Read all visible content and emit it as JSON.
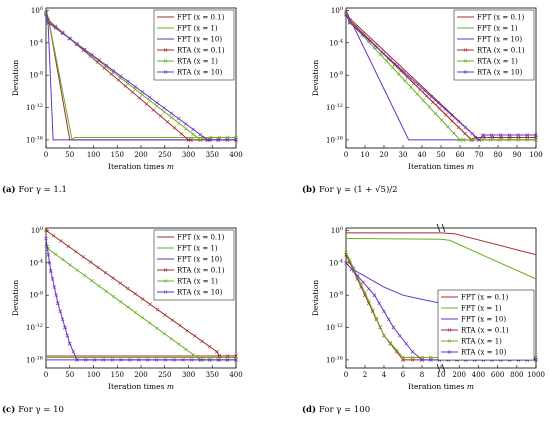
{
  "figure": {
    "colors": {
      "FPT_red": "#a52a2a",
      "FPT_green": "#6aaf1f",
      "FPT_purple": "#6a2fc6",
      "RTA_red": "#a52a2a",
      "RTA_green": "#6aaf1f",
      "RTA_purple": "#6a2fc6",
      "frame": "#000000"
    }
  },
  "chart_data": [
    {
      "type": "line",
      "panel_label": "(a)",
      "caption": "For γ = 1.1",
      "xlabel": "Iteration times m",
      "ylabel": "Deviation",
      "yscale": "log",
      "xlim": [
        0,
        400
      ],
      "ylim": [
        1e-17,
        2
      ],
      "xticks": [
        "0",
        "50",
        "100",
        "150",
        "200",
        "250",
        "300",
        "350",
        "400"
      ],
      "yticks": [
        "10^0",
        "10^-4",
        "10^-8",
        "10^-12",
        "10^-16"
      ],
      "legend_position": "top-right",
      "series": [
        {
          "name": "FPT (x = 0.1)",
          "color": "#a52a2a",
          "marker": "none",
          "x": [
            0,
            5,
            50,
            55,
            400
          ],
          "y": [
            0.8,
            0.1,
            1e-16,
            1e-16,
            1e-16
          ]
        },
        {
          "name": "FPT (x = 1)",
          "color": "#6aaf1f",
          "marker": "none",
          "x": [
            0,
            5,
            55,
            60,
            400
          ],
          "y": [
            0.8,
            0.1,
            1e-16,
            2e-16,
            2e-16
          ]
        },
        {
          "name": "FPT (x = 10)",
          "color": "#6a2fc6",
          "marker": "none",
          "x": [
            0,
            4,
            15,
            400
          ],
          "y": [
            0.9,
            0.1,
            1e-16,
            1e-16
          ]
        },
        {
          "name": "RTA (x = 0.1)",
          "color": "#a52a2a",
          "marker": "x",
          "x": [
            0,
            5,
            300,
            305,
            400
          ],
          "y": [
            0.5,
            0.06,
            1e-16,
            1e-16,
            1e-16
          ]
        },
        {
          "name": "RTA (x = 1)",
          "color": "#6aaf1f",
          "marker": "x",
          "x": [
            0,
            5,
            325,
            330,
            400
          ],
          "y": [
            0.4,
            0.04,
            1e-16,
            2e-16,
            2e-16
          ]
        },
        {
          "name": "RTA (x = 10)",
          "color": "#6a2fc6",
          "marker": "x",
          "x": [
            0,
            5,
            340,
            345,
            400
          ],
          "y": [
            0.3,
            0.03,
            1e-16,
            1e-16,
            1e-16
          ]
        }
      ]
    },
    {
      "type": "line",
      "panel_label": "(b)",
      "caption": "For γ = (1 + √5)/2",
      "xlabel": "Iteration times m",
      "ylabel": "Deviation",
      "yscale": "log",
      "xlim": [
        0,
        100
      ],
      "ylim": [
        1e-17,
        2
      ],
      "xticks": [
        "0",
        "10",
        "20",
        "30",
        "40",
        "50",
        "60",
        "70",
        "80",
        "90",
        "100"
      ],
      "yticks": [
        "10^0",
        "10^-4",
        "10^-8",
        "10^-12",
        "10^-16"
      ],
      "legend_position": "top-right",
      "series": [
        {
          "name": "FPT (x = 0.1)",
          "color": "#a52a2a",
          "marker": "none",
          "x": [
            0,
            2,
            70,
            72,
            100
          ],
          "y": [
            0.8,
            0.1,
            1e-16,
            1e-16,
            1e-16
          ]
        },
        {
          "name": "FPT (x = 1)",
          "color": "#6aaf1f",
          "marker": "none",
          "x": [
            0,
            2,
            66,
            68,
            100
          ],
          "y": [
            0.5,
            0.05,
            1e-16,
            2e-16,
            2e-16
          ]
        },
        {
          "name": "FPT (x = 10)",
          "color": "#6a2fc6",
          "marker": "none",
          "x": [
            0,
            2,
            33,
            35,
            100
          ],
          "y": [
            0.9,
            0.1,
            1e-16,
            1e-16,
            1e-16
          ]
        },
        {
          "name": "RTA (x = 0.1)",
          "color": "#a52a2a",
          "marker": "x",
          "x": [
            0,
            2,
            66,
            68,
            100
          ],
          "y": [
            0.6,
            0.06,
            1e-16,
            2e-16,
            2e-16
          ]
        },
        {
          "name": "RTA (x = 1)",
          "color": "#6aaf1f",
          "marker": "x",
          "x": [
            0,
            2,
            60,
            62,
            100
          ],
          "y": [
            0.4,
            0.04,
            1e-16,
            1e-16,
            1e-16
          ]
        },
        {
          "name": "RTA (x = 10)",
          "color": "#6a2fc6",
          "marker": "x",
          "x": [
            0,
            2,
            70,
            72,
            100
          ],
          "y": [
            0.3,
            0.03,
            1e-16,
            4e-16,
            4e-16
          ]
        }
      ]
    },
    {
      "type": "line",
      "panel_label": "(c)",
      "caption": "For γ = 10",
      "xlabel": "Iteration times m",
      "ylabel": "Deviation",
      "yscale": "log",
      "xlim": [
        0,
        400
      ],
      "ylim": [
        1e-17,
        2
      ],
      "xticks": [
        "0",
        "50",
        "100",
        "150",
        "200",
        "250",
        "300",
        "350",
        "400"
      ],
      "yticks": [
        "10^0",
        "10^-4",
        "10^-8",
        "10^-12",
        "10^-16"
      ],
      "legend_position": "top-right",
      "series": [
        {
          "name": "FPT (x = 0.1)",
          "color": "#a52a2a",
          "marker": "none",
          "x": [
            0,
            400
          ],
          "y": [
            3e-16,
            3e-16
          ]
        },
        {
          "name": "FPT (x = 1)",
          "color": "#6aaf1f",
          "marker": "none",
          "x": [
            0,
            400
          ],
          "y": [
            2e-16,
            2e-16
          ]
        },
        {
          "name": "FPT (x = 10)",
          "color": "#6a2fc6",
          "marker": "none",
          "x": [
            0,
            400
          ],
          "y": [
            1e-16,
            1e-16
          ]
        },
        {
          "name": "RTA (x = 0.1)",
          "color": "#a52a2a",
          "marker": "x",
          "x": [
            0,
            360,
            365,
            400
          ],
          "y": [
            1,
            1e-15,
            3e-16,
            3e-16
          ]
        },
        {
          "name": "RTA (x = 1)",
          "color": "#6aaf1f",
          "marker": "x",
          "x": [
            0,
            5,
            325,
            330,
            400
          ],
          "y": [
            0.01,
            0.005,
            1e-16,
            1e-16,
            1e-16
          ]
        },
        {
          "name": "RTA (x = 10)",
          "color": "#6a2fc6",
          "marker": "x",
          "x": [
            0,
            10,
            25,
            40,
            50,
            65,
            400
          ],
          "y": [
            0.1,
            1e-05,
            1e-09,
            1e-12,
            1e-14,
            1e-16,
            1e-16
          ]
        }
      ]
    },
    {
      "type": "line",
      "panel_label": "(d)",
      "caption": "For γ = 100",
      "xlabel": "Iteration times m",
      "ylabel": "Deviation",
      "yscale": "log",
      "xaxis": "broken",
      "xlim": [
        0,
        1000
      ],
      "ylim": [
        1e-17,
        2
      ],
      "xticks": [
        "0",
        "2",
        "4",
        "6",
        "8",
        "10",
        "200",
        "400",
        "600",
        "800",
        "1000"
      ],
      "yticks": [
        "10^0",
        "10^-4",
        "10^-8",
        "10^-12",
        "10^-16"
      ],
      "legend_position": "bottom-right",
      "series": [
        {
          "name": "FPT (x = 0.1)",
          "color": "#a52a2a",
          "marker": "none",
          "x": [
            0,
            10,
            150,
            1000
          ],
          "y": [
            0.5,
            0.5,
            0.4,
            0.001
          ]
        },
        {
          "name": "FPT (x = 1)",
          "color": "#6aaf1f",
          "marker": "none",
          "x": [
            0,
            10,
            100,
            1000
          ],
          "y": [
            0.1,
            0.08,
            0.06,
            1e-06
          ]
        },
        {
          "name": "FPT (x = 10)",
          "color": "#6a2fc6",
          "marker": "none",
          "x": [
            0,
            1,
            4,
            6,
            8,
            10,
            1000
          ],
          "y": [
            0.001,
            1e-05,
            1e-07,
            1e-08,
            3e-09,
            1e-09,
            1e-16
          ]
        },
        {
          "name": "RTA (x = 0.1)",
          "color": "#a52a2a",
          "marker": "x",
          "x": [
            0,
            2,
            4,
            6,
            8,
            1000
          ],
          "y": [
            0.001,
            1e-08,
            1e-13,
            1e-16,
            1e-16,
            1e-16
          ]
        },
        {
          "name": "RTA (x = 1)",
          "color": "#6aaf1f",
          "marker": "x",
          "x": [
            0,
            2,
            4,
            6,
            8,
            1000
          ],
          "y": [
            0.002,
            2e-08,
            1e-13,
            2e-16,
            2e-16,
            2e-16
          ]
        },
        {
          "name": "RTA (x = 10)",
          "color": "#6a2fc6",
          "marker": "x",
          "x": [
            0,
            3,
            5,
            7,
            8,
            1000
          ],
          "y": [
            0.0001,
            1e-08,
            1e-12,
            1e-15,
            1e-16,
            1e-16
          ]
        }
      ]
    }
  ]
}
